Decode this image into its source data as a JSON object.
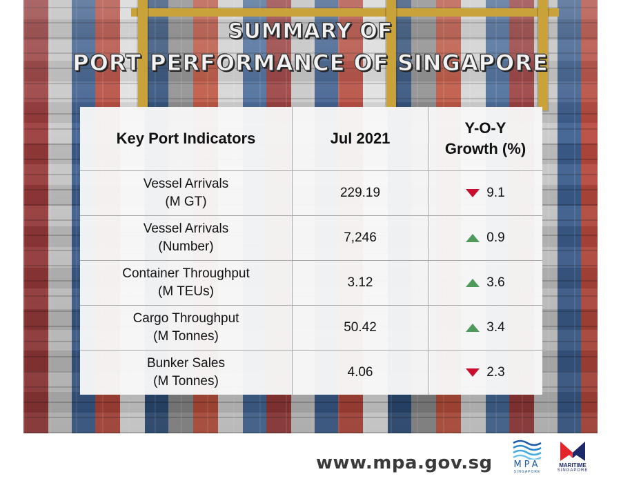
{
  "title": {
    "line1": "SUMMARY OF",
    "line2": "PORT PERFORMANCE OF SINGAPORE"
  },
  "table": {
    "headers": {
      "indicator": "Key Port Indicators",
      "period": "Jul 2021",
      "growth_line1": "Y-O-Y",
      "growth_line2": "Growth (%)"
    },
    "rows": [
      {
        "indicator_line1": "Vessel Arrivals",
        "indicator_line2": "(M GT)",
        "value": "229.19",
        "growth": "9.1",
        "direction": "down"
      },
      {
        "indicator_line1": "Vessel Arrivals",
        "indicator_line2": "(Number)",
        "value": "7,246",
        "growth": "0.9",
        "direction": "up"
      },
      {
        "indicator_line1": "Container Throughput",
        "indicator_line2": "(M TEUs)",
        "value": "3.12",
        "growth": "3.6",
        "direction": "up"
      },
      {
        "indicator_line1": "Cargo Throughput",
        "indicator_line2": "(M Tonnes)",
        "value": "50.42",
        "growth": "3.4",
        "direction": "up"
      },
      {
        "indicator_line1": "Bunker Sales",
        "indicator_line2": "(M Tonnes)",
        "value": "4.06",
        "growth": "2.3",
        "direction": "down"
      }
    ]
  },
  "footer": {
    "url": "www.mpa.gov.sg",
    "mpa_logo": {
      "name": "MPA",
      "sub": "SINGAPORE",
      "icon": "wave-icon"
    },
    "ms_logo": {
      "name": "MARITIME",
      "sub": "SINGAPORE",
      "icon": "m-logo-icon"
    }
  },
  "colors": {
    "down": "#c8102e",
    "up": "#4e9a5b"
  }
}
